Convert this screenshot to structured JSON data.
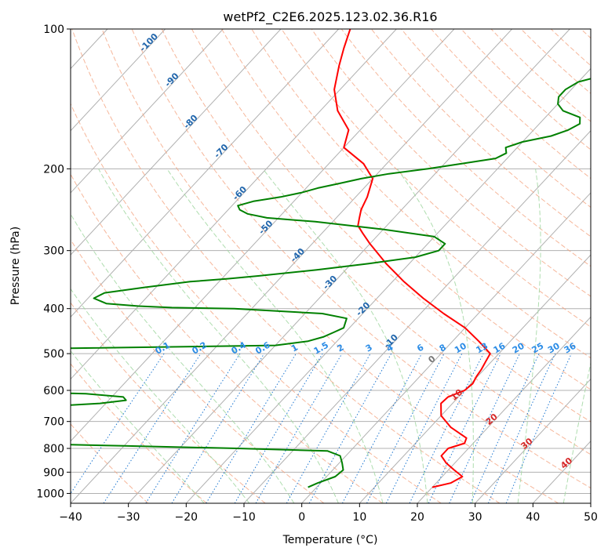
{
  "chart_data": {
    "type": "line",
    "title": "wetPf2_C2E6.2025.123.02.36.R16",
    "xlabel": "Temperature (°C)",
    "ylabel": "Pressure (hPa)",
    "xlim": [
      -40,
      50
    ],
    "ylim": [
      1050,
      100
    ],
    "y_scale": "log",
    "grid": true,
    "x_ticks": [
      -40,
      -30,
      -20,
      -10,
      0,
      10,
      20,
      30,
      40,
      50
    ],
    "y_ticks": [
      1000,
      900,
      800,
      700,
      600,
      500,
      400,
      300,
      200,
      100
    ],
    "series": [
      {
        "role": "temperature",
        "color": "#ff0000",
        "p": [
          970,
          950,
          920,
          890,
          860,
          830,
          800,
          780,
          760,
          720,
          680,
          640,
          620,
          600,
          580,
          560,
          540,
          520,
          500,
          470,
          440,
          410,
          380,
          350,
          320,
          290,
          275,
          265,
          255,
          245,
          230,
          210,
          195,
          180,
          165,
          150,
          135,
          120,
          110,
          100
        ],
        "t": [
          20,
          22.5,
          23.5,
          21,
          18.5,
          16.5,
          16.5,
          18.5,
          18,
          13.5,
          10,
          8,
          8.2,
          10,
          10.3,
          9.8,
          9.5,
          9,
          8.5,
          4.5,
          0,
          -6,
          -12,
          -18,
          -24,
          -30,
          -33,
          -35,
          -36,
          -37,
          -38,
          -40,
          -44,
          -50,
          -52,
          -57,
          -61,
          -64,
          -66,
          -68
        ]
      },
      {
        "role": "dewpoint",
        "color": "#008000",
        "p": [
          970,
          950,
          920,
          890,
          860,
          830,
          810,
          800,
          790,
          785,
          780,
          775,
          770,
          765,
          760,
          750,
          740,
          720,
          700,
          690,
          680,
          670,
          660,
          650,
          640,
          630,
          620,
          610,
          605,
          600,
          560,
          540,
          520,
          510,
          500,
          490,
          480,
          470,
          460,
          450,
          440,
          420,
          410,
          400,
          398,
          395,
          390,
          380,
          370,
          360,
          350,
          345,
          340,
          330,
          320,
          310,
          300,
          290,
          280,
          270,
          260,
          255,
          250,
          245,
          240,
          235,
          230,
          225,
          220,
          215,
          210,
          205,
          200,
          195,
          190,
          185,
          180,
          175,
          170,
          165,
          160,
          155,
          150,
          145,
          140,
          135,
          130,
          125,
          120,
          115,
          110,
          105,
          100
        ],
        "t": [
          -1.5,
          -0.5,
          1.5,
          1.8,
          0.5,
          -1,
          -4,
          -20,
          -40,
          -50,
          -70,
          -80,
          -90,
          -85,
          -65,
          -60,
          -63,
          -69,
          -71,
          -71,
          -72,
          -69,
          -64,
          -60,
          -51,
          -47,
          -48,
          -55,
          -66,
          -75,
          -92,
          -102,
          -108,
          -120,
          -130,
          -80,
          -30,
          -25,
          -23,
          -22,
          -21,
          -22,
          -27,
          -43,
          -54,
          -60,
          -66,
          -69,
          -68,
          -62,
          -55,
          -49,
          -44,
          -35,
          -27,
          -20,
          -17,
          -17,
          -20,
          -30,
          -43,
          -52,
          -56,
          -58,
          -59,
          -57,
          -53,
          -50,
          -48,
          -45,
          -42,
          -38,
          -32,
          -27,
          -22,
          -21,
          -22,
          -20,
          -16,
          -14,
          -13,
          -14,
          -18,
          -20,
          -21,
          -21,
          -20,
          -16,
          -14,
          -11,
          -8,
          -6,
          -3
        ]
      }
    ],
    "dry_adiabat_labels": [
      "-100",
      "-90",
      "-80",
      "-70",
      "-60",
      "-50",
      "-40",
      "-30",
      "-20",
      "-10"
    ],
    "mixing_ratio_labels": [
      "0.1",
      "0.2",
      "0.4",
      "0.6",
      "1",
      "1.5",
      "2",
      "3",
      "4",
      "6",
      "8",
      "10",
      "13",
      "16",
      "20",
      "25",
      "30",
      "36"
    ],
    "moist_adiabat_labels": [
      "0",
      "10",
      "20",
      "30",
      "40"
    ],
    "colors": {
      "isotherm": "#b0b0b0",
      "isobar": "#b0b0b0",
      "dry_adiabat": "#f4a582",
      "moist_adiabat": "#a6d9a6",
      "mixing_ratio": "#1f78d1",
      "dry_label": "#2166ac",
      "mixing_label": "#2b8ce6",
      "moist_label_zero": "#777777",
      "moist_label": "#d62728"
    }
  }
}
